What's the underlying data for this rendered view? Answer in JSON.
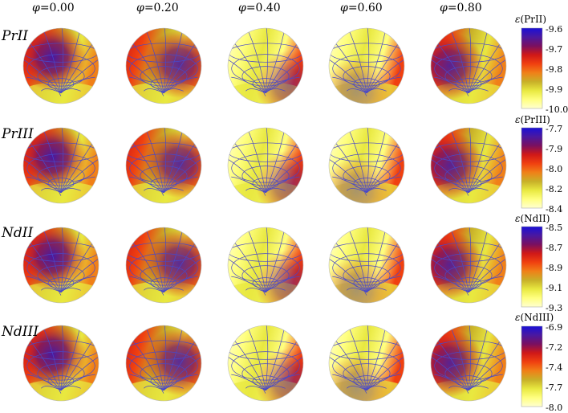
{
  "figure": {
    "phase_symbol": "φ",
    "phases": [
      "0.00",
      "0.20",
      "0.40",
      "0.60",
      "0.80"
    ],
    "rows": [
      {
        "label": "PrII",
        "scale_symbol": "ε",
        "scale_title": "(PrII)",
        "ticks": [
          "-9.6",
          "-9.7",
          "-9.8",
          "-9.9",
          "-10.0"
        ]
      },
      {
        "label": "PrIII",
        "scale_symbol": "ε",
        "scale_title": "(PrIII)",
        "ticks": [
          "-7.7",
          "-7.9",
          "-8.0",
          "-8.2",
          "-8.4"
        ]
      },
      {
        "label": "NdII",
        "scale_symbol": "ε",
        "scale_title": "(NdII)",
        "ticks": [
          "-8.5",
          "-8.7",
          "-8.9",
          "-9.1",
          "-9.3"
        ]
      },
      {
        "label": "NdIII",
        "scale_symbol": "ε",
        "scale_title": "(NdIII)",
        "ticks": [
          "-6.9",
          "-7.2",
          "-7.4",
          "-7.7",
          "-8.0"
        ]
      }
    ],
    "colormap": [
      "#1a10d8",
      "#4a18a0",
      "#7a1060",
      "#d01818",
      "#f04010",
      "#f08018",
      "#c8b028",
      "#e8e840",
      "#ffff80",
      "#ffffd0"
    ],
    "grid_color": "#4848c8"
  }
}
